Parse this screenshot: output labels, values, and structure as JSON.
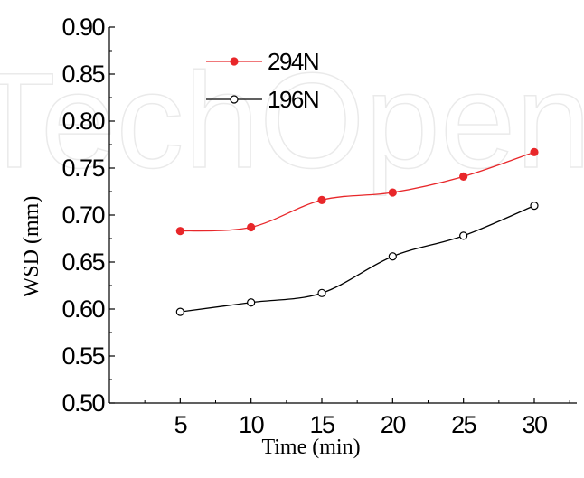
{
  "chart_data": {
    "type": "line",
    "x": [
      5,
      10,
      15,
      20,
      25,
      30
    ],
    "series": [
      {
        "name": "294N",
        "values": [
          0.683,
          0.687,
          0.716,
          0.724,
          0.741,
          0.767
        ],
        "color": "#e8272a",
        "marker": "filled-circle"
      },
      {
        "name": "196N",
        "values": [
          0.597,
          0.607,
          0.617,
          0.656,
          0.678,
          0.71
        ],
        "color": "#000000",
        "marker": "open-circle"
      }
    ],
    "xlabel": "Time (min)",
    "ylabel": "WSD (mm)",
    "xlim": [
      0,
      33
    ],
    "ylim": [
      0.5,
      0.9
    ],
    "xticks": [
      5,
      10,
      15,
      20,
      25,
      30
    ],
    "yticks": [
      0.5,
      0.55,
      0.6,
      0.65,
      0.7,
      0.75,
      0.8,
      0.85,
      0.9
    ],
    "ytick_labels": [
      "0.50",
      "0.55",
      "0.60",
      "0.65",
      "0.70",
      "0.75",
      "0.80",
      "0.85",
      "0.90"
    ],
    "grid": false,
    "legend_position": "top-left"
  },
  "watermark": "TechOpen"
}
